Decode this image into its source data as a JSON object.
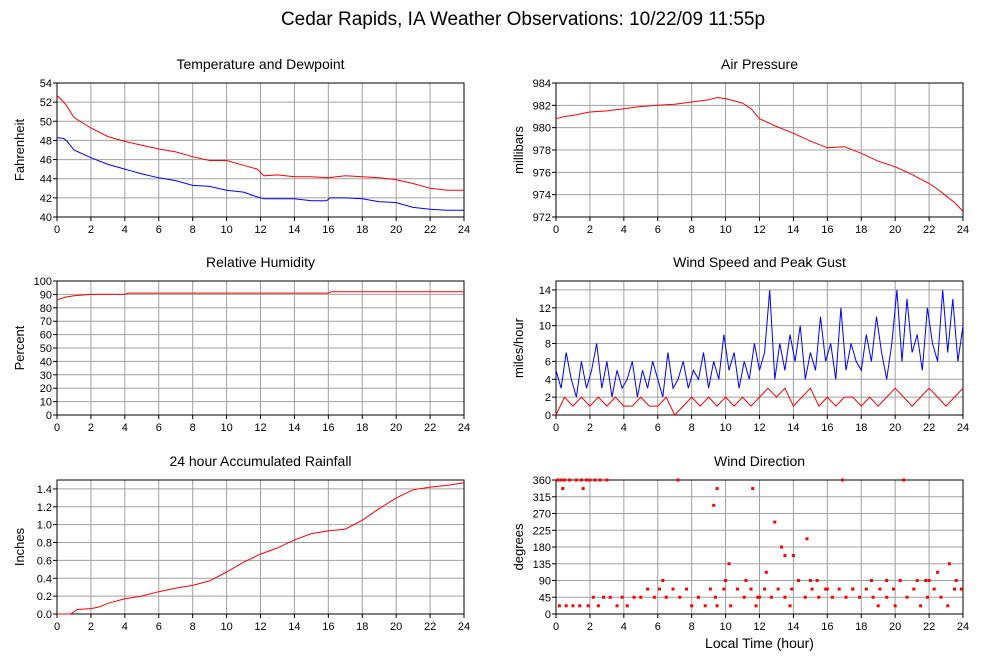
{
  "page": {
    "title": "Cedar Rapids, IA Weather Observations: 10/22/09 11:55p"
  },
  "colors": {
    "red": "#ff0000",
    "blue": "#0000ff",
    "grid": "#a0a0a0"
  },
  "chart_data": [
    {
      "id": "temp",
      "type": "line",
      "title": "Temperature and Dewpoint",
      "ylabel": "Fahrenheit",
      "xlabel": "",
      "xlim": [
        0,
        24
      ],
      "ylim": [
        40,
        54
      ],
      "xticks": [
        0,
        2,
        4,
        6,
        8,
        10,
        12,
        14,
        16,
        18,
        20,
        22,
        24
      ],
      "yticks": [
        40,
        42,
        44,
        46,
        48,
        50,
        52,
        54
      ],
      "grid": true,
      "series": [
        {
          "color": "#ff0000",
          "x": [
            0,
            0.5,
            1,
            2,
            3,
            4,
            5,
            6,
            7,
            8,
            9,
            10,
            11,
            11.8,
            12.2,
            13,
            14,
            15,
            16,
            17,
            18,
            19,
            20,
            21,
            22,
            23,
            24
          ],
          "y": [
            52.7,
            51.8,
            50.4,
            49.3,
            48.4,
            47.9,
            47.5,
            47.1,
            46.8,
            46.3,
            45.9,
            45.9,
            45.4,
            45.0,
            44.3,
            44.4,
            44.2,
            44.2,
            44.1,
            44.3,
            44.2,
            44.1,
            43.9,
            43.5,
            43.0,
            42.8,
            42.8
          ]
        },
        {
          "color": "#0000ff",
          "x": [
            0,
            0.4,
            0.6,
            1,
            2,
            3,
            4,
            5,
            6,
            7,
            8,
            9,
            10,
            11,
            11.8,
            12.2,
            13,
            14,
            15,
            15.9,
            16.1,
            17,
            18,
            19,
            20,
            21,
            22,
            23,
            24
          ],
          "y": [
            48.3,
            48.2,
            47.9,
            47.0,
            46.2,
            45.5,
            45.0,
            44.5,
            44.1,
            43.8,
            43.3,
            43.2,
            42.8,
            42.6,
            42.1,
            41.9,
            41.9,
            41.9,
            41.7,
            41.7,
            42.0,
            42.0,
            41.9,
            41.6,
            41.5,
            41.0,
            40.8,
            40.7,
            40.7
          ]
        }
      ]
    },
    {
      "id": "pressure",
      "type": "line",
      "title": "Air Pressure",
      "ylabel": "millibars",
      "xlabel": "",
      "xlim": [
        0,
        24
      ],
      "ylim": [
        972,
        984
      ],
      "xticks": [
        0,
        2,
        4,
        6,
        8,
        10,
        12,
        14,
        16,
        18,
        20,
        22,
        24
      ],
      "yticks": [
        972,
        974,
        976,
        978,
        980,
        982,
        984
      ],
      "grid": true,
      "series": [
        {
          "color": "#ff0000",
          "x": [
            0,
            0.5,
            1,
            2,
            3,
            4,
            5,
            6,
            7,
            8,
            9,
            9.5,
            10,
            11,
            11.5,
            12,
            13,
            14,
            15,
            16,
            17,
            18,
            19,
            20,
            21,
            22,
            22.5,
            23,
            23.5,
            24
          ],
          "y": [
            980.8,
            981.0,
            981.1,
            981.4,
            981.5,
            981.7,
            981.9,
            982.0,
            982.1,
            982.3,
            982.5,
            982.7,
            982.6,
            982.2,
            981.7,
            980.8,
            980.1,
            979.5,
            978.8,
            978.2,
            978.3,
            977.7,
            977.0,
            976.5,
            975.8,
            975.0,
            974.5,
            973.9,
            973.3,
            972.5
          ]
        }
      ]
    },
    {
      "id": "humidity",
      "type": "line",
      "title": "Relative Humidity",
      "ylabel": "Percent",
      "xlabel": "",
      "xlim": [
        0,
        24
      ],
      "ylim": [
        0,
        100
      ],
      "xticks": [
        0,
        2,
        4,
        6,
        8,
        10,
        12,
        14,
        16,
        18,
        20,
        22,
        24
      ],
      "yticks": [
        0,
        10,
        20,
        30,
        40,
        50,
        60,
        70,
        80,
        90,
        100
      ],
      "grid": true,
      "series": [
        {
          "color": "#ff0000",
          "x": [
            0,
            0.5,
            1,
            2,
            3,
            4,
            4.2,
            6,
            8,
            10,
            12,
            14,
            16,
            16.2,
            18,
            20,
            22,
            24
          ],
          "y": [
            86,
            88,
            89,
            90,
            90,
            90,
            91,
            91,
            91,
            91,
            91,
            91,
            91,
            92,
            92,
            92,
            92,
            92
          ]
        }
      ]
    },
    {
      "id": "wind",
      "type": "line",
      "title": "Wind Speed and Peak Gust",
      "ylabel": "miles/hour",
      "xlabel": "",
      "xlim": [
        0,
        24
      ],
      "ylim": [
        0,
        15
      ],
      "xticks": [
        0,
        2,
        4,
        6,
        8,
        10,
        12,
        14,
        16,
        18,
        20,
        22,
        24
      ],
      "yticks": [
        0,
        2,
        4,
        6,
        8,
        10,
        12,
        14
      ],
      "grid": true,
      "series": [
        {
          "color": "#0000ff",
          "x": [
            0,
            0.3,
            0.6,
            0.9,
            1.2,
            1.5,
            1.8,
            2.1,
            2.4,
            2.7,
            3.0,
            3.3,
            3.6,
            3.9,
            4.2,
            4.5,
            4.8,
            5.1,
            5.4,
            5.7,
            6.0,
            6.3,
            6.6,
            6.9,
            7.2,
            7.5,
            7.8,
            8.1,
            8.4,
            8.7,
            9.0,
            9.3,
            9.6,
            9.9,
            10.2,
            10.5,
            10.8,
            11.1,
            11.4,
            11.7,
            12.0,
            12.3,
            12.6,
            12.9,
            13.2,
            13.5,
            13.8,
            14.1,
            14.4,
            14.7,
            15.0,
            15.3,
            15.6,
            15.9,
            16.2,
            16.5,
            16.8,
            17.1,
            17.4,
            17.7,
            18.0,
            18.3,
            18.6,
            18.9,
            19.2,
            19.5,
            19.8,
            20.1,
            20.4,
            20.7,
            21.0,
            21.3,
            21.6,
            21.9,
            22.2,
            22.5,
            22.8,
            23.1,
            23.4,
            23.7,
            24.0
          ],
          "y": [
            5,
            3,
            7,
            4,
            2,
            6,
            3,
            5,
            8,
            3,
            6,
            2,
            5,
            3,
            4,
            6,
            2,
            5,
            3,
            6,
            4,
            2,
            7,
            3,
            4,
            6,
            3,
            5,
            4,
            7,
            3,
            6,
            4,
            9,
            5,
            7,
            3,
            6,
            4,
            8,
            5,
            7,
            14,
            4,
            8,
            5,
            9,
            6,
            10,
            4,
            7,
            5,
            11,
            6,
            8,
            4,
            12,
            5,
            8,
            6,
            5,
            9,
            6,
            11,
            7,
            4,
            8,
            14,
            6,
            13,
            7,
            9,
            5,
            12,
            8,
            6,
            14,
            7,
            13,
            6,
            10
          ]
        },
        {
          "color": "#ff0000",
          "x": [
            0,
            0.5,
            1,
            1.5,
            2,
            2.5,
            3,
            3.5,
            4,
            4.5,
            5,
            5.5,
            6,
            6.5,
            7,
            7.5,
            8,
            8.5,
            9,
            9.5,
            10,
            10.5,
            11,
            11.5,
            12,
            12.5,
            13,
            13.5,
            14,
            14.5,
            15,
            15.5,
            16,
            16.5,
            17,
            17.5,
            18,
            18.5,
            19,
            19.5,
            20,
            20.5,
            21,
            21.5,
            22,
            22.5,
            23,
            23.5,
            24
          ],
          "y": [
            0,
            2,
            1,
            2,
            1,
            2,
            1,
            2,
            1,
            1,
            2,
            1,
            1,
            2,
            0,
            1,
            2,
            1,
            2,
            1,
            2,
            1,
            2,
            1,
            2,
            3,
            2,
            3,
            1,
            2,
            3,
            1,
            2,
            1,
            2,
            2,
            1,
            2,
            1,
            2,
            3,
            2,
            1,
            2,
            3,
            2,
            1,
            2,
            3
          ]
        }
      ]
    },
    {
      "id": "rain",
      "type": "line",
      "title": "24 hour Accumulated Rainfall",
      "ylabel": "Inches",
      "xlabel": "",
      "xlim": [
        0,
        24
      ],
      "ylim": [
        0,
        1.5
      ],
      "xticks": [
        0,
        2,
        4,
        6,
        8,
        10,
        12,
        14,
        16,
        18,
        20,
        22,
        24
      ],
      "yticks": [
        0.0,
        0.2,
        0.4,
        0.6,
        0.8,
        1.0,
        1.2,
        1.4
      ],
      "ytick_labels": [
        "0.0",
        "0.2",
        "0.4",
        "0.6",
        "0.8",
        "1.0",
        "1.2",
        "1.4"
      ],
      "grid": true,
      "series": [
        {
          "color": "#ff0000",
          "x": [
            0,
            0.8,
            1.2,
            2,
            2.5,
            3,
            4,
            5,
            6,
            7,
            8,
            9,
            10,
            11,
            12,
            13,
            14,
            15,
            16,
            17,
            18,
            19,
            20,
            21,
            22,
            23,
            24
          ],
          "y": [
            0.0,
            0.0,
            0.05,
            0.06,
            0.08,
            0.12,
            0.17,
            0.2,
            0.25,
            0.29,
            0.32,
            0.37,
            0.47,
            0.58,
            0.67,
            0.74,
            0.83,
            0.9,
            0.93,
            0.95,
            1.05,
            1.18,
            1.3,
            1.39,
            1.42,
            1.44,
            1.47
          ]
        }
      ]
    },
    {
      "id": "winddir",
      "type": "scatter",
      "title": "Wind Direction",
      "ylabel": "degrees",
      "xlabel": "Local Time (hour)",
      "xlim": [
        0,
        24
      ],
      "ylim": [
        0,
        360
      ],
      "xticks": [
        0,
        2,
        4,
        6,
        8,
        10,
        12,
        14,
        16,
        18,
        20,
        22,
        24
      ],
      "yticks": [
        0,
        45,
        90,
        135,
        180,
        225,
        270,
        315,
        360
      ],
      "grid": true,
      "series": [
        {
          "color": "#ff0000",
          "x": [
            0.1,
            0.3,
            0.5,
            0.8,
            1.2,
            1.5,
            1.8,
            2.0,
            2.3,
            2.6,
            3.0,
            0.2,
            0.6,
            1.0,
            1.4,
            1.9,
            2.2,
            2.5,
            2.8,
            3.2,
            3.6,
            3.9,
            4.2,
            4.6,
            5.0,
            5.4,
            5.8,
            6.1,
            6.5,
            6.9,
            7.3,
            7.7,
            8.0,
            8.4,
            8.8,
            9.1,
            9.5,
            9.9,
            10.3,
            10.7,
            11.1,
            11.5,
            11.9,
            12.3,
            12.7,
            13.1,
            13.5,
            13.9,
            14.3,
            14.7,
            15.1,
            15.5,
            15.9,
            16.3,
            16.7,
            17.1,
            17.5,
            17.9,
            18.3,
            18.7,
            19.1,
            19.5,
            19.9,
            20.3,
            20.7,
            21.1,
            21.5,
            21.9,
            22.3,
            22.7,
            23.1,
            23.5,
            23.9,
            0.4,
            1.6,
            9.3,
            9.5,
            10.2,
            11.6,
            12.9,
            13.3,
            13.5,
            14.8,
            20.5,
            22.5,
            23.2,
            6.3,
            7.2,
            12.4,
            14.0,
            15.4,
            16.9,
            18.6,
            20.0,
            21.3,
            22.0,
            9.4,
            10.0,
            11.2,
            13.8,
            15.0,
            17.5,
            19.5,
            21.8,
            23.6,
            11.8,
            12.0,
            16.0,
            19.0
          ],
          "y": [
            360,
            360,
            360,
            360,
            360,
            360,
            360,
            360,
            360,
            360,
            360,
            22,
            22,
            22,
            22,
            22,
            45,
            22,
            45,
            45,
            22,
            45,
            22,
            45,
            45,
            67,
            45,
            67,
            45,
            67,
            45,
            67,
            22,
            45,
            22,
            67,
            22,
            67,
            22,
            67,
            45,
            67,
            45,
            67,
            45,
            67,
            45,
            67,
            90,
            45,
            67,
            45,
            67,
            45,
            67,
            45,
            67,
            45,
            67,
            45,
            67,
            45,
            67,
            90,
            45,
            67,
            22,
            45,
            67,
            45,
            22,
            67,
            67,
            337,
            337,
            292,
            337,
            135,
            337,
            247,
            180,
            157,
            202,
            360,
            112,
            135,
            90,
            360,
            112,
            157,
            90,
            360,
            90,
            22,
            90,
            90,
            45,
            90,
            90,
            22,
            90,
            67,
            90,
            90,
            90,
            22,
            45,
            67,
            22
          ]
        }
      ]
    }
  ]
}
